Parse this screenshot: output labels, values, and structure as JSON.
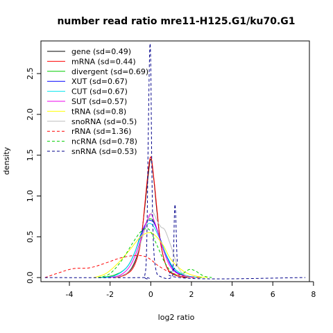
{
  "chart_data": {
    "type": "line",
    "title": "number read ratio mre11-H125.G1/ku70.G1",
    "xlabel": "log2 ratio",
    "ylabel": "density",
    "xlim": [
      -5.4,
      7.8
    ],
    "ylim": [
      -0.05,
      2.9
    ],
    "xticks": [
      -4,
      -2,
      0,
      2,
      4,
      6,
      8
    ],
    "yticks": [
      0.0,
      0.5,
      1.0,
      1.5,
      2.0,
      2.5
    ],
    "legend_position": "top-left",
    "series": [
      {
        "name": "gene (sd=0.49)",
        "color": "#000000",
        "dashed": false,
        "x": [
          -1.8,
          -1.2,
          -0.8,
          -0.5,
          -0.3,
          -0.15,
          0,
          0.15,
          0.3,
          0.5,
          0.8,
          1.2,
          1.8
        ],
        "y": [
          0.0,
          0.05,
          0.18,
          0.45,
          0.85,
          1.2,
          1.45,
          1.2,
          0.82,
          0.4,
          0.12,
          0.03,
          0.0
        ]
      },
      {
        "name": "mRNA (sd=0.44)",
        "color": "#ff0000",
        "dashed": false,
        "x": [
          -1.7,
          -1.2,
          -0.8,
          -0.5,
          -0.3,
          -0.15,
          0,
          0.15,
          0.3,
          0.5,
          0.8,
          1.2,
          1.7
        ],
        "y": [
          0.0,
          0.04,
          0.15,
          0.42,
          0.88,
          1.25,
          1.48,
          1.22,
          0.85,
          0.4,
          0.12,
          0.03,
          0.0
        ]
      },
      {
        "name": "divergent (sd=0.69)",
        "color": "#00cd00",
        "dashed": false,
        "x": [
          -2.5,
          -1.8,
          -1.2,
          -0.8,
          -0.5,
          -0.2,
          0,
          0.2,
          0.5,
          0.8,
          1.2,
          1.8,
          2.5
        ],
        "y": [
          0.0,
          0.03,
          0.12,
          0.3,
          0.5,
          0.68,
          0.72,
          0.66,
          0.45,
          0.25,
          0.1,
          0.02,
          0.0
        ]
      },
      {
        "name": "XUT (sd=0.67)",
        "color": "#0000ff",
        "dashed": false,
        "x": [
          -2.4,
          -1.8,
          -1.2,
          -0.8,
          -0.5,
          -0.2,
          0,
          0.2,
          0.5,
          0.8,
          1.2,
          1.8,
          2.4
        ],
        "y": [
          0.0,
          0.02,
          0.12,
          0.3,
          0.52,
          0.68,
          0.7,
          0.65,
          0.45,
          0.25,
          0.08,
          0.02,
          0.0
        ]
      },
      {
        "name": "CUT (sd=0.67)",
        "color": "#00e5ee",
        "dashed": false,
        "x": [
          -2.4,
          -1.8,
          -1.2,
          -0.8,
          -0.5,
          -0.2,
          0,
          0.2,
          0.5,
          0.8,
          1.2,
          1.8,
          2.4
        ],
        "y": [
          0.0,
          0.02,
          0.12,
          0.3,
          0.5,
          0.64,
          0.66,
          0.6,
          0.44,
          0.26,
          0.1,
          0.02,
          0.0
        ]
      },
      {
        "name": "SUT (sd=0.57)",
        "color": "#ee00ee",
        "dashed": false,
        "x": [
          -2.1,
          -1.5,
          -1.0,
          -0.6,
          -0.3,
          -0.1,
          0,
          0.1,
          0.3,
          0.6,
          1.0,
          1.5,
          2.1
        ],
        "y": [
          0.0,
          0.03,
          0.15,
          0.38,
          0.62,
          0.75,
          0.78,
          0.74,
          0.6,
          0.35,
          0.12,
          0.03,
          0.0
        ]
      },
      {
        "name": "tRNA (sd=0.8)",
        "color": "#ffff00",
        "dashed": false,
        "x": [
          -2.8,
          -2.2,
          -1.6,
          -1.0,
          -0.5,
          -0.1,
          0.2,
          0.6,
          1.0,
          1.6,
          2.2,
          2.8
        ],
        "y": [
          0.0,
          0.05,
          0.18,
          0.35,
          0.5,
          0.55,
          0.52,
          0.4,
          0.22,
          0.08,
          0.02,
          0.0
        ]
      },
      {
        "name": "snoRNA (sd=0.5)",
        "color": "#bebebe",
        "dashed": false,
        "x": [
          -1.8,
          -1.2,
          -0.8,
          -0.4,
          -0.1,
          0.1,
          0.3,
          0.5,
          0.7,
          1.0,
          1.4,
          1.9
        ],
        "y": [
          0.0,
          0.05,
          0.2,
          0.5,
          0.72,
          0.8,
          0.7,
          0.62,
          0.58,
          0.38,
          0.1,
          0.0
        ]
      },
      {
        "name": "rRNA (sd=1.36)",
        "color": "#ff0000",
        "dashed": true,
        "x": [
          -5.2,
          -4.5,
          -3.8,
          -3.0,
          -2.2,
          -1.5,
          -0.8,
          -0.3,
          0.0,
          0.4,
          1.0,
          1.8,
          2.5
        ],
        "y": [
          0.0,
          0.06,
          0.11,
          0.12,
          0.18,
          0.24,
          0.27,
          0.26,
          0.22,
          0.14,
          0.06,
          0.01,
          0.0
        ]
      },
      {
        "name": "ncRNA (sd=0.78)",
        "color": "#00cd00",
        "dashed": true,
        "x": [
          -2.6,
          -2.0,
          -1.4,
          -0.9,
          -0.5,
          -0.2,
          0.0,
          0.3,
          0.7,
          1.1,
          1.5,
          1.9,
          2.2,
          2.6,
          3.0
        ],
        "y": [
          0.0,
          0.05,
          0.22,
          0.42,
          0.56,
          0.6,
          0.56,
          0.4,
          0.18,
          0.05,
          0.04,
          0.1,
          0.08,
          0.02,
          0.0
        ]
      },
      {
        "name": "snRNA (sd=0.53)",
        "color": "#00008b",
        "dashed": true,
        "x": [
          -5.2,
          -0.5,
          -0.3,
          -0.2,
          -0.12,
          -0.05,
          0.0,
          0.05,
          0.12,
          0.25,
          0.5,
          1.0,
          1.1,
          1.17,
          1.22,
          1.3,
          1.4,
          7.6
        ],
        "y": [
          0.0,
          0.0,
          0.02,
          0.4,
          1.8,
          2.8,
          2.6,
          1.4,
          0.5,
          0.1,
          0.01,
          0.0,
          0.15,
          0.82,
          0.8,
          0.2,
          0.0,
          0.0
        ]
      }
    ]
  }
}
